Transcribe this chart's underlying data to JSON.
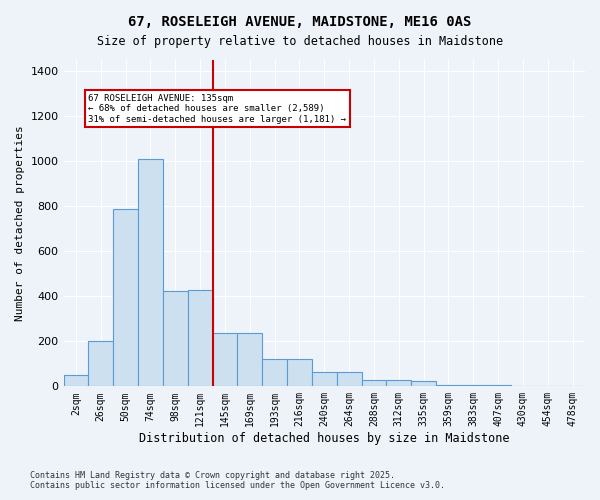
{
  "title": "67, ROSELEIGH AVENUE, MAIDSTONE, ME16 0AS",
  "subtitle": "Size of property relative to detached houses in Maidstone",
  "xlabel": "Distribution of detached houses by size in Maidstone",
  "ylabel": "Number of detached properties",
  "bar_labels": [
    "2sqm",
    "26sqm",
    "50sqm",
    "74sqm",
    "98sqm",
    "121sqm",
    "145sqm",
    "169sqm",
    "193sqm",
    "216sqm",
    "240sqm",
    "264sqm",
    "288sqm",
    "312sqm",
    "335sqm",
    "359sqm",
    "383sqm",
    "407sqm",
    "430sqm",
    "454sqm",
    "478sqm"
  ],
  "bar_values": [
    50,
    200,
    790,
    1010,
    425,
    430,
    235,
    235,
    120,
    120,
    65,
    65,
    30,
    30,
    25,
    5,
    5,
    5,
    2,
    2,
    2
  ],
  "bar_color": "#cce0f0",
  "bar_edge_color": "#5b9bd5",
  "background_color": "#eef3fa",
  "grid_color": "#ffffff",
  "ref_line_x": 5,
  "ref_line_label": "135sqm",
  "annotation_text": "67 ROSELEIGH AVENUE: 135sqm\n← 68% of detached houses are smaller (2,589)\n31% of semi-detached houses are larger (1,181) →",
  "annotation_box_color": "#ffffff",
  "annotation_box_edge": "#cc0000",
  "ref_line_color": "#cc0000",
  "ylim": [
    0,
    1450
  ],
  "yticks": [
    0,
    200,
    400,
    600,
    800,
    1000,
    1200,
    1400
  ],
  "footer": "Contains HM Land Registry data © Crown copyright and database right 2025.\nContains public sector information licensed under the Open Government Licence v3.0.",
  "figsize": [
    6.0,
    5.0
  ],
  "dpi": 100
}
